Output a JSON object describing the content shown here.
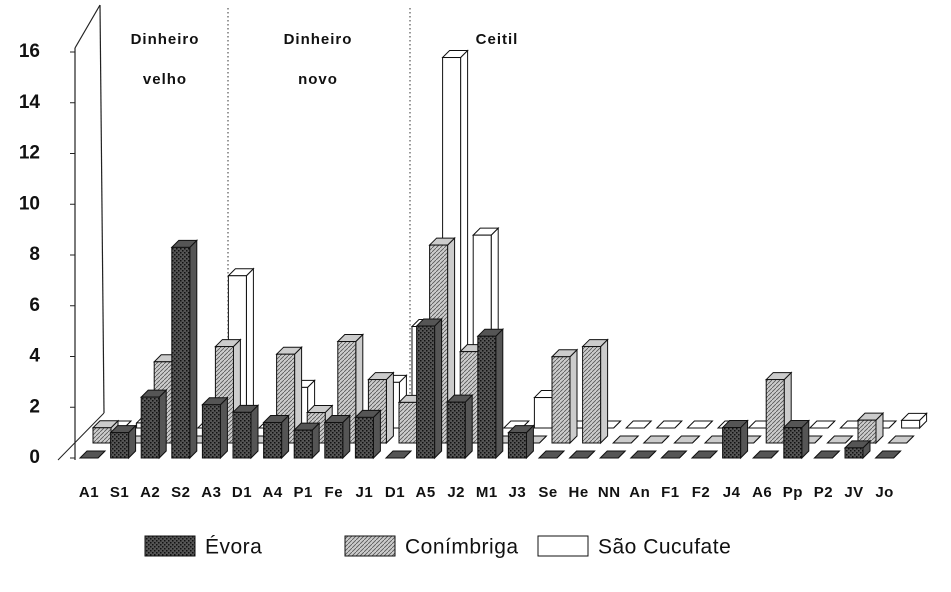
{
  "chart_data": {
    "type": "bar3d",
    "categories": [
      "A1",
      "S1",
      "A2",
      "S2",
      "A3",
      "D1",
      "A4",
      "P1",
      "Fe",
      "J1",
      "D1",
      "A5",
      "J2",
      "M1",
      "J3",
      "Se",
      "He",
      "NN",
      "An",
      "F1",
      "F2",
      "J4",
      "A6",
      "Pp",
      "P2",
      "JV",
      "Jo"
    ],
    "series": [
      {
        "name": "Évora",
        "color": "#555555",
        "values": [
          0,
          1,
          2.4,
          8.3,
          2.1,
          1.8,
          1.4,
          1.1,
          1.4,
          1.6,
          0,
          5.2,
          2.2,
          4.8,
          1,
          0,
          0,
          0,
          0,
          0,
          0,
          1.2,
          0,
          1.2,
          0,
          0.4,
          0
        ]
      },
      {
        "name": "Conímbriga",
        "color": "#cccccc",
        "values": [
          0.6,
          0,
          3.2,
          0,
          3.8,
          0,
          3.5,
          1.2,
          4,
          2.5,
          1.6,
          7.8,
          3.6,
          0,
          0,
          3.4,
          3.8,
          0,
          0,
          0,
          0,
          0,
          2.5,
          0,
          0,
          0.9,
          0
        ]
      },
      {
        "name": "São Cucufate",
        "color": "#ffffff",
        "values": [
          0,
          0.2,
          0,
          0,
          6,
          0,
          1.6,
          0,
          0,
          1.8,
          4,
          14.6,
          7.6,
          0,
          1.2,
          0,
          0,
          0,
          0,
          0,
          0,
          0,
          0,
          0,
          0,
          0,
          0.3
        ]
      }
    ],
    "ylim": [
      0,
      16
    ],
    "yticks": [
      0,
      2,
      4,
      6,
      8,
      10,
      12,
      14,
      16
    ],
    "annotations": [
      {
        "lines": [
          "Dinheiro",
          "velho"
        ]
      },
      {
        "lines": [
          "Dinheiro",
          "novo"
        ]
      },
      {
        "lines": [
          "Ceitil"
        ]
      }
    ]
  }
}
